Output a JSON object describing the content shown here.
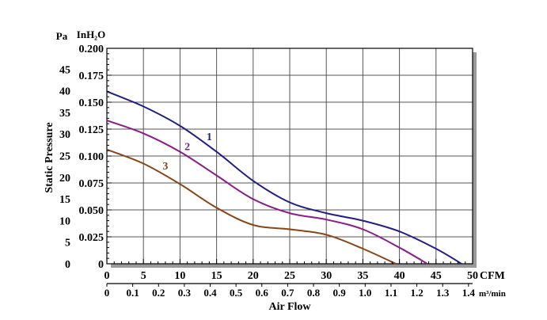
{
  "chart_data": {
    "type": "line",
    "title": "",
    "xlabel": "Air Flow",
    "ylabel": "Static Pressure",
    "x_unit_primary": "CFM",
    "x_unit_secondary": "m³/min",
    "y_unit_primary": "Pa",
    "y_unit_secondary": "InH₂O",
    "xlim": [
      0,
      50
    ],
    "ylim": [
      0,
      0.2
    ],
    "grid": true,
    "x_ticks_cfm": [
      "0",
      "5",
      "10",
      "15",
      "20",
      "25",
      "30",
      "35",
      "40",
      "45",
      "50"
    ],
    "x_ticks_m3min": [
      "0",
      "0.1",
      "0.2",
      "0.3",
      "0.4",
      "0.5",
      "0.6",
      "0.7",
      "0.8",
      "0.9",
      "1.0",
      "1.1",
      "1.2",
      "1.3",
      "1.4"
    ],
    "y_ticks_inh2o": [
      "0",
      "0.025",
      "0.050",
      "0.075",
      "0.100",
      "0.125",
      "0.150",
      "0.175",
      "0.200"
    ],
    "y_ticks_pa": [
      "0",
      "5",
      "10",
      "15",
      "20",
      "25",
      "30",
      "35",
      "40",
      "45"
    ],
    "series": [
      {
        "name": "1",
        "color": "#1f1f8c",
        "x": [
          0,
          5,
          10,
          15,
          20,
          25,
          30,
          35,
          40,
          45,
          48.5
        ],
        "y": [
          0.16,
          0.146,
          0.128,
          0.104,
          0.077,
          0.057,
          0.047,
          0.04,
          0.03,
          0.014,
          0.0
        ]
      },
      {
        "name": "2",
        "color": "#8b1a8b",
        "x": [
          0,
          5,
          10,
          15,
          20,
          25,
          30,
          35,
          40,
          43.8
        ],
        "y": [
          0.133,
          0.121,
          0.104,
          0.082,
          0.06,
          0.047,
          0.041,
          0.032,
          0.015,
          0.0
        ]
      },
      {
        "name": "3",
        "color": "#8b4513",
        "x": [
          0,
          5,
          10,
          15,
          20,
          25,
          30,
          35,
          39.5
        ],
        "y": [
          0.106,
          0.093,
          0.074,
          0.052,
          0.036,
          0.032,
          0.027,
          0.014,
          0.0
        ]
      }
    ]
  }
}
